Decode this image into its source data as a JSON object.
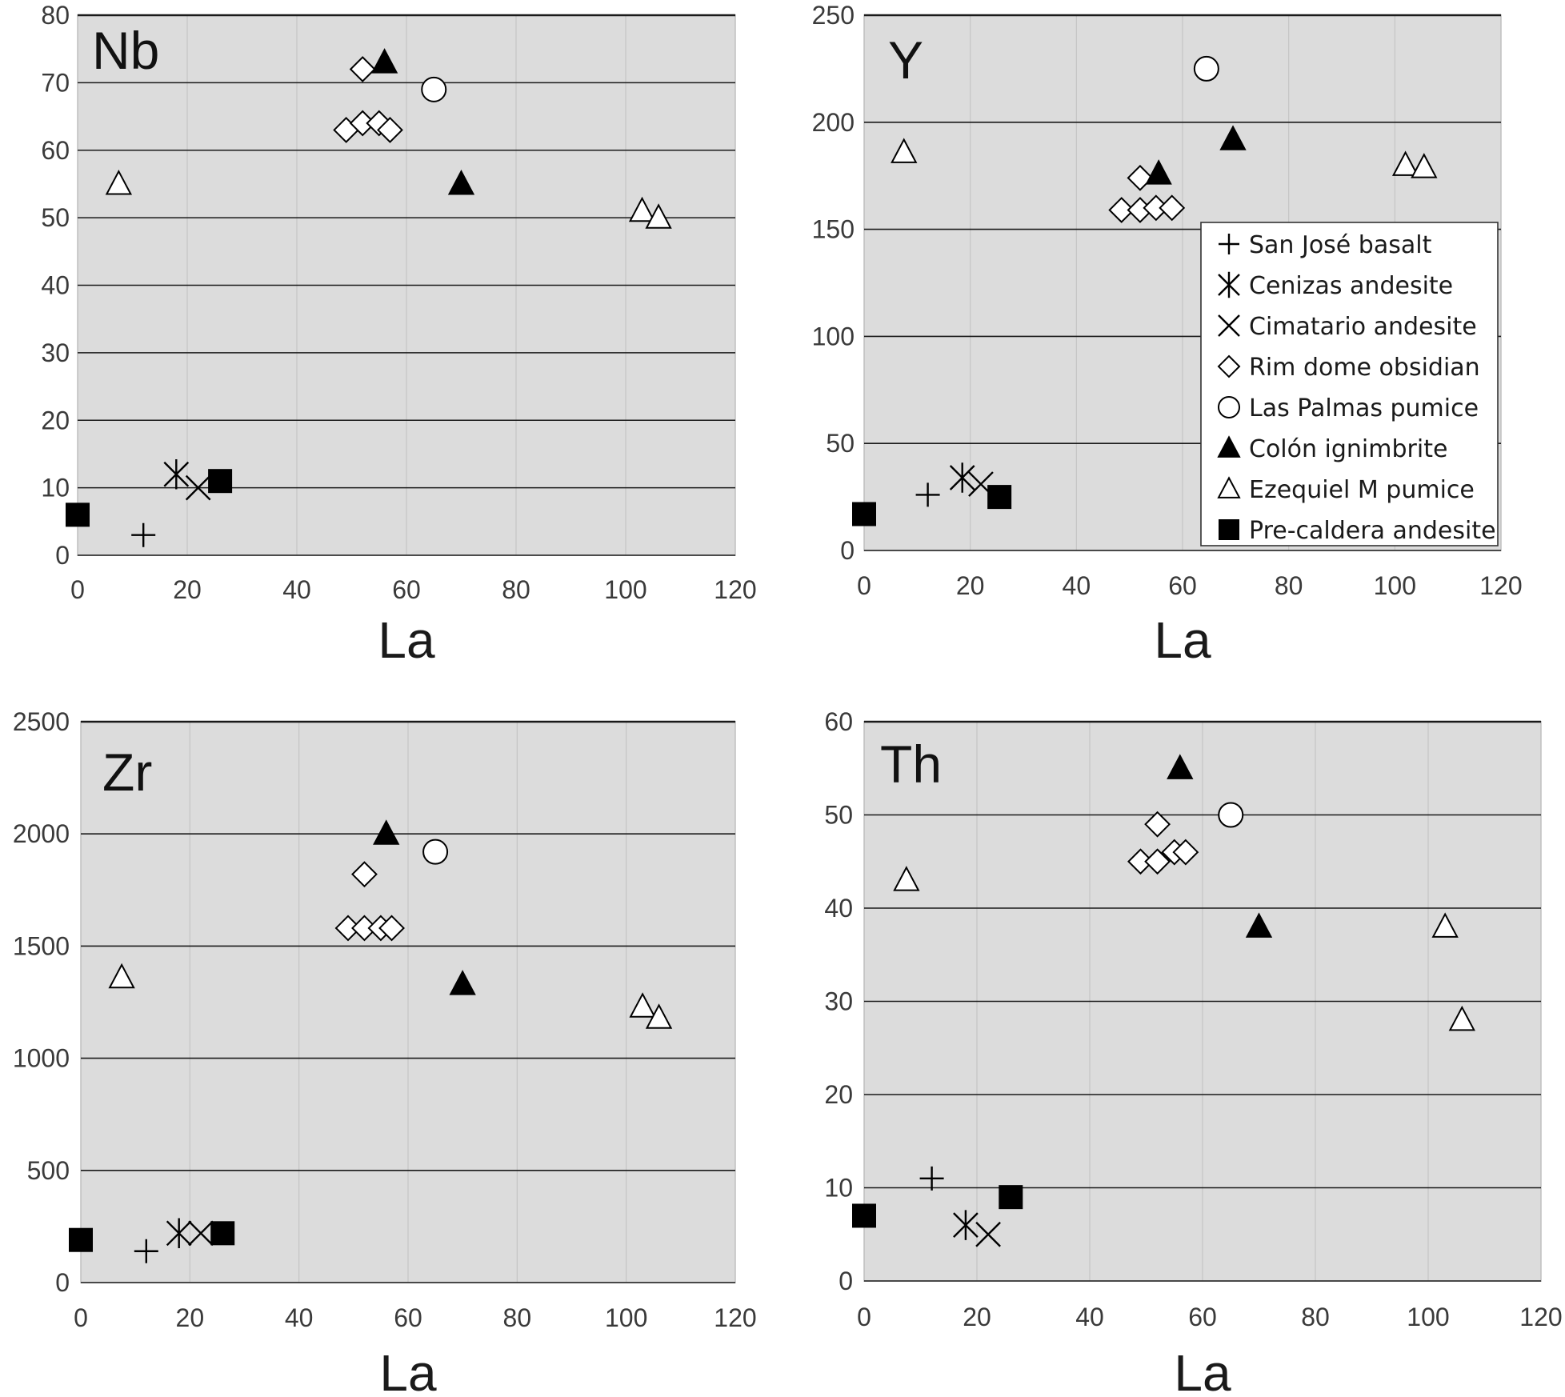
{
  "colors": {
    "plot_background": "#dcdcdc",
    "gridline": "#1a1a1a",
    "marker": "#000000",
    "hollow_fill": "#ffffff"
  },
  "legend_entries": [
    {
      "label": "San José basalt",
      "marker": "plus"
    },
    {
      "label": "Cenizas andesite",
      "marker": "asterisk"
    },
    {
      "label": "Cimatario andesite",
      "marker": "cross"
    },
    {
      "label": "Rim dome obsidian",
      "marker": "diamond-open"
    },
    {
      "label": "Las Palmas pumice",
      "marker": "circle-open"
    },
    {
      "label": "Colón ignimbrite",
      "marker": "triangle-filled"
    },
    {
      "label": "Ezequiel M pumice",
      "marker": "triangle-open"
    },
    {
      "label": "Pre-caldera andesite",
      "marker": "square-filled"
    }
  ],
  "chart_data": [
    {
      "type": "scatter",
      "title": "Nb",
      "xlabel": "La",
      "ylabel": "",
      "xlim": [
        0,
        120
      ],
      "ylim": [
        0,
        80
      ],
      "xticks": [
        "0",
        "20",
        "40",
        "60",
        "80",
        "100",
        "120"
      ],
      "yticks": [
        "0",
        "10",
        "20",
        "30",
        "40",
        "50",
        "60",
        "70",
        "80"
      ],
      "grid": "horizontal",
      "legend": "none",
      "series": [
        {
          "name": "San José basalt",
          "points": [
            [
              12,
              3
            ]
          ]
        },
        {
          "name": "Cenizas andesite",
          "points": [
            [
              18,
              12
            ]
          ]
        },
        {
          "name": "Cimatario andesite",
          "points": [
            [
              22,
              10
            ]
          ]
        },
        {
          "name": "Rim dome obsidian",
          "points": [
            [
              52,
              72
            ],
            [
              49,
              63
            ],
            [
              52,
              64
            ],
            [
              55,
              64
            ],
            [
              57,
              63
            ]
          ]
        },
        {
          "name": "Las Palmas pumice",
          "points": [
            [
              65,
              69
            ]
          ]
        },
        {
          "name": "Colón ignimbrite",
          "points": [
            [
              56,
              73
            ],
            [
              70,
              55
            ]
          ]
        },
        {
          "name": "Ezequiel M pumice",
          "points": [
            [
              7.5,
              55
            ],
            [
              103,
              51
            ],
            [
              106,
              50
            ]
          ]
        },
        {
          "name": "Pre-caldera andesite",
          "points": [
            [
              0,
              6
            ],
            [
              26,
              11
            ]
          ]
        }
      ]
    },
    {
      "type": "scatter",
      "title": "Y",
      "xlabel": "La",
      "ylabel": "",
      "xlim": [
        0,
        120
      ],
      "ylim": [
        0,
        250
      ],
      "xticks": [
        "0",
        "20",
        "40",
        "60",
        "80",
        "100",
        "120"
      ],
      "yticks": [
        "0",
        "50",
        "100",
        "150",
        "200",
        "250"
      ],
      "grid": "horizontal",
      "legend": "right-middle",
      "series": [
        {
          "name": "San José basalt",
          "points": [
            [
              12,
              26
            ]
          ]
        },
        {
          "name": "Cenizas andesite",
          "points": [
            [
              18.5,
              34
            ]
          ]
        },
        {
          "name": "Cimatario andesite",
          "points": [
            [
              22,
              31
            ]
          ]
        },
        {
          "name": "Rim dome obsidian",
          "points": [
            [
              52,
              174
            ],
            [
              48.5,
              159
            ],
            [
              52,
              159
            ],
            [
              55,
              160
            ],
            [
              58,
              160
            ]
          ]
        },
        {
          "name": "Las Palmas pumice",
          "points": [
            [
              64.5,
              225
            ]
          ]
        },
        {
          "name": "Colón ignimbrite",
          "points": [
            [
              55.5,
              176
            ],
            [
              69.5,
              192
            ]
          ]
        },
        {
          "name": "Ezequiel M pumice",
          "points": [
            [
              7.5,
              186
            ],
            [
              102,
              180
            ],
            [
              105.5,
              179
            ]
          ]
        },
        {
          "name": "Pre-caldera andesite",
          "points": [
            [
              0,
              17
            ],
            [
              25.5,
              25
            ]
          ]
        }
      ]
    },
    {
      "type": "scatter",
      "title": "Zr",
      "xlabel": "La",
      "ylabel": "",
      "xlim": [
        0,
        120
      ],
      "ylim": [
        0,
        2500
      ],
      "xticks": [
        "0",
        "20",
        "40",
        "60",
        "80",
        "100",
        "120"
      ],
      "yticks": [
        "0",
        "500",
        "1000",
        "1500",
        "2000",
        "2500"
      ],
      "grid": "horizontal",
      "legend": "none",
      "series": [
        {
          "name": "San José basalt",
          "points": [
            [
              12,
              140
            ]
          ]
        },
        {
          "name": "Cenizas andesite",
          "points": [
            [
              18,
              220
            ]
          ]
        },
        {
          "name": "Cimatario andesite",
          "points": [
            [
              22,
              220
            ]
          ]
        },
        {
          "name": "Rim dome obsidian",
          "points": [
            [
              52,
              1820
            ],
            [
              49,
              1580
            ],
            [
              52,
              1580
            ],
            [
              55,
              1580
            ],
            [
              57,
              1580
            ]
          ]
        },
        {
          "name": "Las Palmas pumice",
          "points": [
            [
              65,
              1920
            ]
          ]
        },
        {
          "name": "Colón ignimbrite",
          "points": [
            [
              56,
              2000
            ],
            [
              70,
              1330
            ]
          ]
        },
        {
          "name": "Ezequiel M pumice",
          "points": [
            [
              7.5,
              1360
            ],
            [
              103,
              1230
            ],
            [
              106,
              1180
            ]
          ]
        },
        {
          "name": "Pre-caldera andesite",
          "points": [
            [
              0,
              190
            ],
            [
              26,
              220
            ]
          ]
        }
      ]
    },
    {
      "type": "scatter",
      "title": "Th",
      "xlabel": "La",
      "ylabel": "",
      "xlim": [
        0,
        120
      ],
      "ylim": [
        0,
        60
      ],
      "xticks": [
        "0",
        "20",
        "40",
        "60",
        "80",
        "100",
        "120"
      ],
      "yticks": [
        "0",
        "10",
        "20",
        "30",
        "40",
        "50",
        "60"
      ],
      "grid": "horizontal",
      "legend": "none",
      "series": [
        {
          "name": "San José basalt",
          "points": [
            [
              12,
              11
            ]
          ]
        },
        {
          "name": "Cenizas andesite",
          "points": [
            [
              18,
              6
            ]
          ]
        },
        {
          "name": "Cimatario andesite",
          "points": [
            [
              22,
              5
            ]
          ]
        },
        {
          "name": "Rim dome obsidian",
          "points": [
            [
              52,
              49
            ],
            [
              49,
              45
            ],
            [
              52,
              45
            ],
            [
              55,
              46
            ],
            [
              57,
              46
            ]
          ]
        },
        {
          "name": "Las Palmas pumice",
          "points": [
            [
              65,
              50
            ]
          ]
        },
        {
          "name": "Colón ignimbrite",
          "points": [
            [
              56,
              55
            ],
            [
              70,
              38
            ]
          ]
        },
        {
          "name": "Ezequiel M pumice",
          "points": [
            [
              7.5,
              43
            ],
            [
              103,
              38
            ],
            [
              106,
              28
            ]
          ]
        },
        {
          "name": "Pre-caldera andesite",
          "points": [
            [
              0,
              7
            ],
            [
              26,
              9
            ]
          ]
        }
      ]
    }
  ]
}
